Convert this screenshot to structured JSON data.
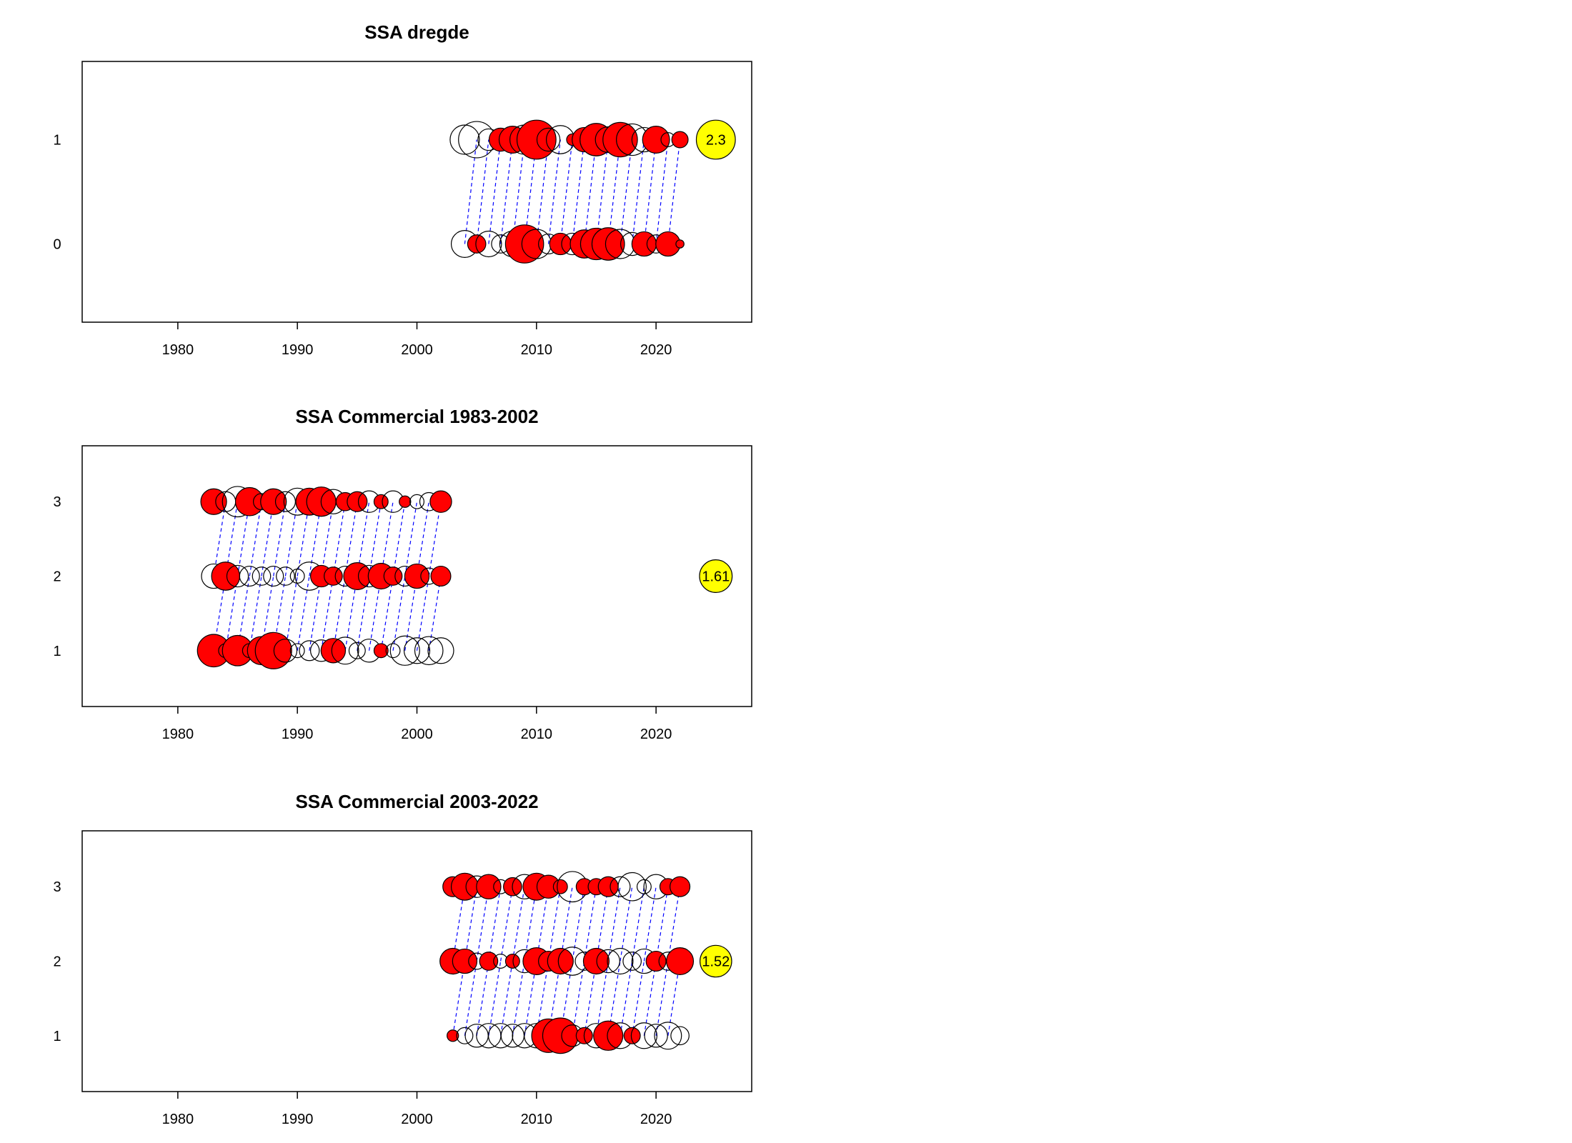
{
  "chart_data": [
    {
      "type": "scatter",
      "title": "SSA dregde",
      "xlabel": "",
      "ylabel": "",
      "xlim": [
        1972,
        2028
      ],
      "x_ticks": [
        1980,
        1990,
        2000,
        2010,
        2020
      ],
      "y_ticks": [
        "1",
        "0"
      ],
      "ages": [
        0,
        1
      ],
      "grid": false,
      "positive_color": "#ff0000",
      "negative_color": "#ffffff",
      "link_color": "#0000ff",
      "total_color": "#ffff00",
      "total": {
        "x": 2025,
        "age": 1,
        "value": "2.3",
        "size": 2.3
      },
      "series": [
        {
          "age": 0,
          "points": [
            {
              "x": 2004,
              "size": -1.1
            },
            {
              "x": 2005,
              "size": 0.5
            },
            {
              "x": 2006,
              "size": -1.0
            },
            {
              "x": 2007,
              "size": -0.5
            },
            {
              "x": 2008,
              "size": -1.0
            },
            {
              "x": 2009,
              "size": 2.2
            },
            {
              "x": 2010,
              "size": -1.3
            },
            {
              "x": 2011,
              "size": -0.6
            },
            {
              "x": 2012,
              "size": 0.7
            },
            {
              "x": 2013,
              "size": -0.7
            },
            {
              "x": 2014,
              "size": 1.2
            },
            {
              "x": 2015,
              "size": 1.5
            },
            {
              "x": 2016,
              "size": 1.6
            },
            {
              "x": 2017,
              "size": -1.3
            },
            {
              "x": 2018,
              "size": -0.8
            },
            {
              "x": 2019,
              "size": 0.9
            },
            {
              "x": 2020,
              "size": -0.5
            },
            {
              "x": 2021,
              "size": 0.9
            },
            {
              "x": 2022,
              "size": 0.1
            }
          ]
        },
        {
          "age": 1,
          "points": [
            {
              "x": 2004,
              "size": -1.3
            },
            {
              "x": 2005,
              "size": -2.0
            },
            {
              "x": 2006,
              "size": -0.7
            },
            {
              "x": 2007,
              "size": 0.8
            },
            {
              "x": 2008,
              "size": 1.1
            },
            {
              "x": 2009,
              "size": -1.3
            },
            {
              "x": 2010,
              "size": 2.3
            },
            {
              "x": 2011,
              "size": -0.8
            },
            {
              "x": 2012,
              "size": -1.2
            },
            {
              "x": 2013,
              "size": 0.2
            },
            {
              "x": 2014,
              "size": 0.9
            },
            {
              "x": 2015,
              "size": 1.6
            },
            {
              "x": 2016,
              "size": -1.0
            },
            {
              "x": 2017,
              "size": 1.8
            },
            {
              "x": 2018,
              "size": -1.5
            },
            {
              "x": 2019,
              "size": -0.9
            },
            {
              "x": 2020,
              "size": 1.1
            },
            {
              "x": 2021,
              "size": -0.3
            },
            {
              "x": 2022,
              "size": 0.4
            }
          ]
        }
      ]
    },
    {
      "type": "scatter",
      "title": "SSA Commercial 1983-2002",
      "xlabel": "",
      "ylabel": "",
      "xlim": [
        1972,
        2028
      ],
      "x_ticks": [
        1980,
        1990,
        2000,
        2010,
        2020
      ],
      "y_ticks": [
        "3",
        "2",
        "1"
      ],
      "ages": [
        1,
        2,
        3
      ],
      "grid": false,
      "positive_color": "#ff0000",
      "negative_color": "#ffffff",
      "link_color": "#0000ff",
      "total_color": "#ffff00",
      "total": {
        "x": 2025,
        "age": 2,
        "value": "1.61",
        "size": 1.61
      },
      "series": [
        {
          "age": 1,
          "points": [
            {
              "x": 1983,
              "size": 1.6
            },
            {
              "x": 1984,
              "size": -0.3
            },
            {
              "x": 1985,
              "size": 1.4
            },
            {
              "x": 1986,
              "size": -0.3
            },
            {
              "x": 1987,
              "size": 1.2
            },
            {
              "x": 1988,
              "size": 2.0
            },
            {
              "x": 1989,
              "size": -0.8
            },
            {
              "x": 1990,
              "size": -0.3
            },
            {
              "x": 1991,
              "size": -0.6
            },
            {
              "x": 1992,
              "size": -0.7
            },
            {
              "x": 1993,
              "size": 0.9
            },
            {
              "x": 1994,
              "size": -1.1
            },
            {
              "x": 1995,
              "size": -0.4
            },
            {
              "x": 1996,
              "size": -0.8
            },
            {
              "x": 1997,
              "size": 0.3
            },
            {
              "x": 1998,
              "size": -0.3
            },
            {
              "x": 1999,
              "size": -1.3
            },
            {
              "x": 2000,
              "size": -1.0
            },
            {
              "x": 2001,
              "size": -1.2
            },
            {
              "x": 2002,
              "size": -1.0
            }
          ]
        },
        {
          "age": 2,
          "points": [
            {
              "x": 1983,
              "size": -0.9
            },
            {
              "x": 1984,
              "size": 1.2
            },
            {
              "x": 1985,
              "size": -0.7
            },
            {
              "x": 1986,
              "size": -0.6
            },
            {
              "x": 1987,
              "size": -0.5
            },
            {
              "x": 1988,
              "size": -0.6
            },
            {
              "x": 1989,
              "size": -0.5
            },
            {
              "x": 1990,
              "size": -0.3
            },
            {
              "x": 1991,
              "size": -1.2
            },
            {
              "x": 1992,
              "size": 0.7
            },
            {
              "x": 1993,
              "size": 0.5
            },
            {
              "x": 1994,
              "size": -0.6
            },
            {
              "x": 1995,
              "size": 1.1
            },
            {
              "x": 1996,
              "size": -0.7
            },
            {
              "x": 1997,
              "size": 1.0
            },
            {
              "x": 1998,
              "size": 0.5
            },
            {
              "x": 1999,
              "size": -0.6
            },
            {
              "x": 2000,
              "size": 0.9
            },
            {
              "x": 2001,
              "size": -0.4
            },
            {
              "x": 2002,
              "size": 0.6
            }
          ]
        },
        {
          "age": 3,
          "points": [
            {
              "x": 1983,
              "size": 1.0
            },
            {
              "x": 1984,
              "size": -0.6
            },
            {
              "x": 1985,
              "size": -1.4
            },
            {
              "x": 1986,
              "size": 1.2
            },
            {
              "x": 1987,
              "size": -0.4
            },
            {
              "x": 1988,
              "size": 1.0
            },
            {
              "x": 1989,
              "size": -0.6
            },
            {
              "x": 1990,
              "size": -1.1
            },
            {
              "x": 1991,
              "size": 1.1
            },
            {
              "x": 1992,
              "size": 1.3
            },
            {
              "x": 1993,
              "size": -0.9
            },
            {
              "x": 1994,
              "size": 0.5
            },
            {
              "x": 1995,
              "size": 0.6
            },
            {
              "x": 1996,
              "size": -0.7
            },
            {
              "x": 1997,
              "size": 0.3
            },
            {
              "x": 1998,
              "size": -0.7
            },
            {
              "x": 1999,
              "size": 0.2
            },
            {
              "x": 2000,
              "size": -0.3
            },
            {
              "x": 2001,
              "size": -0.5
            },
            {
              "x": 2002,
              "size": 0.7
            }
          ]
        }
      ]
    },
    {
      "type": "scatter",
      "title": "SSA Commercial 2003-2022",
      "xlabel": "",
      "ylabel": "",
      "xlim": [
        1972,
        2028
      ],
      "x_ticks": [
        1980,
        1990,
        2000,
        2010,
        2020
      ],
      "y_ticks": [
        "3",
        "2",
        "1"
      ],
      "ages": [
        1,
        2,
        3
      ],
      "grid": false,
      "positive_color": "#ff0000",
      "negative_color": "#ffffff",
      "link_color": "#0000ff",
      "total_color": "#ffff00",
      "total": {
        "x": 2025,
        "age": 2,
        "value": "1.52",
        "size": 1.52
      },
      "series": [
        {
          "age": 1,
          "points": [
            {
              "x": 2003,
              "size": 0.2
            },
            {
              "x": 2004,
              "size": -0.4
            },
            {
              "x": 2005,
              "size": -0.8
            },
            {
              "x": 2006,
              "size": -0.9
            },
            {
              "x": 2007,
              "size": -0.9
            },
            {
              "x": 2008,
              "size": -0.8
            },
            {
              "x": 2009,
              "size": -0.9
            },
            {
              "x": 2010,
              "size": -0.9
            },
            {
              "x": 2011,
              "size": 1.7
            },
            {
              "x": 2012,
              "size": 1.9
            },
            {
              "x": 2013,
              "size": -0.7
            },
            {
              "x": 2014,
              "size": 0.4
            },
            {
              "x": 2015,
              "size": -0.9
            },
            {
              "x": 2016,
              "size": 1.3
            },
            {
              "x": 2017,
              "size": -1.0
            },
            {
              "x": 2018,
              "size": 0.4
            },
            {
              "x": 2019,
              "size": -1.0
            },
            {
              "x": 2020,
              "size": -0.8
            },
            {
              "x": 2021,
              "size": -1.1
            },
            {
              "x": 2022,
              "size": -0.5
            }
          ]
        },
        {
          "age": 2,
          "points": [
            {
              "x": 2003,
              "size": 1.0
            },
            {
              "x": 2004,
              "size": 0.9
            },
            {
              "x": 2005,
              "size": -0.4
            },
            {
              "x": 2006,
              "size": 0.5
            },
            {
              "x": 2007,
              "size": -0.3
            },
            {
              "x": 2008,
              "size": 0.3
            },
            {
              "x": 2009,
              "size": -0.8
            },
            {
              "x": 2010,
              "size": 1.1
            },
            {
              "x": 2011,
              "size": 0.6
            },
            {
              "x": 2012,
              "size": 1.0
            },
            {
              "x": 2013,
              "size": -1.2
            },
            {
              "x": 2014,
              "size": -0.5
            },
            {
              "x": 2015,
              "size": 1.0
            },
            {
              "x": 2016,
              "size": -0.8
            },
            {
              "x": 2017,
              "size": -1.0
            },
            {
              "x": 2018,
              "size": -0.5
            },
            {
              "x": 2019,
              "size": -0.9
            },
            {
              "x": 2020,
              "size": 0.6
            },
            {
              "x": 2021,
              "size": -0.5
            },
            {
              "x": 2022,
              "size": 1.1
            }
          ]
        },
        {
          "age": 3,
          "points": [
            {
              "x": 2003,
              "size": 0.6
            },
            {
              "x": 2004,
              "size": 1.1
            },
            {
              "x": 2005,
              "size": -0.7
            },
            {
              "x": 2006,
              "size": 0.9
            },
            {
              "x": 2007,
              "size": -0.3
            },
            {
              "x": 2008,
              "size": 0.5
            },
            {
              "x": 2009,
              "size": -0.9
            },
            {
              "x": 2010,
              "size": 1.1
            },
            {
              "x": 2011,
              "size": 0.8
            },
            {
              "x": 2012,
              "size": 0.3
            },
            {
              "x": 2013,
              "size": -1.4
            },
            {
              "x": 2014,
              "size": 0.4
            },
            {
              "x": 2015,
              "size": 0.4
            },
            {
              "x": 2016,
              "size": 0.6
            },
            {
              "x": 2017,
              "size": -0.6
            },
            {
              "x": 2018,
              "size": -1.2
            },
            {
              "x": 2019,
              "size": -0.3
            },
            {
              "x": 2020,
              "size": -0.9
            },
            {
              "x": 2021,
              "size": 0.4
            },
            {
              "x": 2022,
              "size": 0.6
            }
          ]
        }
      ]
    }
  ]
}
